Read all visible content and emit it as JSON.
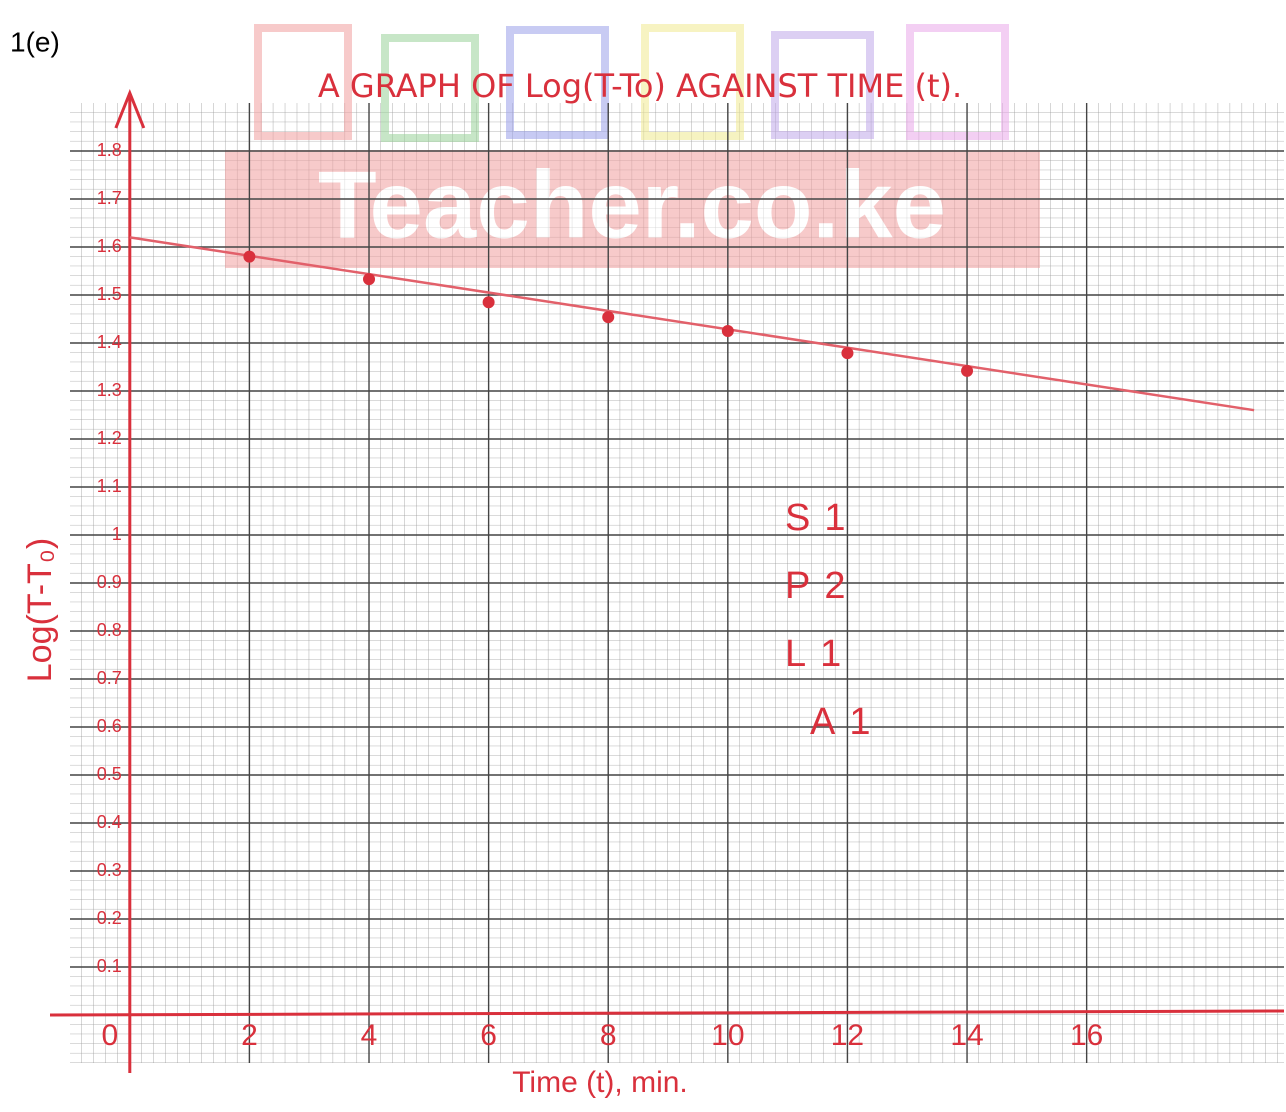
{
  "header": {
    "label": "1(e)"
  },
  "chart_data": {
    "type": "scatter",
    "title": "A GRAPH OF Log(T-To) AGAINST TIME (t).",
    "watermark": "Teacher.co.ke",
    "x_label": "Time (t), min.",
    "y_label": "Log(T-T₀)",
    "x": [
      2,
      4,
      6,
      8,
      10,
      12,
      14
    ],
    "series": [
      {
        "color": "#d9303c",
        "values": [
          1.58,
          1.533,
          1.485,
          1.454,
          1.425,
          1.379,
          1.342
        ]
      }
    ],
    "fit": {
      "color": "#e2606a",
      "x": [
        0,
        18.8
      ],
      "values": [
        1.62,
        1.26
      ]
    },
    "xlim": [
      -1,
      19.3
    ],
    "ylim": [
      -0.1,
      1.9
    ],
    "xticks": [
      0,
      2,
      4,
      6,
      8,
      10,
      12,
      14,
      16
    ],
    "yticks": [
      0.1,
      0.2,
      0.3,
      0.4,
      0.5,
      0.6,
      0.7,
      0.8,
      0.9,
      1.0,
      1.1,
      1.2,
      1.3,
      1.4,
      1.5,
      1.6,
      1.7,
      1.8
    ],
    "grid": true,
    "annotations": [
      "S1",
      "P2",
      "L1",
      "A1"
    ]
  }
}
